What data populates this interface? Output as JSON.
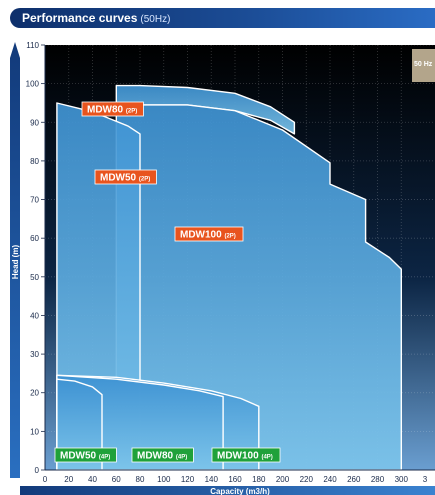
{
  "header": {
    "title": "Performance curves",
    "subtitle": "(50Hz)"
  },
  "chart_data": {
    "type": "area",
    "xlabel": "Capacity (m3/h)",
    "ylabel": "Head (m)",
    "xlim": [
      0,
      320
    ],
    "ylim": [
      0,
      110
    ],
    "x_ticks": [
      "0",
      "20",
      "40",
      "60",
      "80",
      "100",
      "120",
      "140",
      "160",
      "180",
      "200",
      "220",
      "240",
      "260",
      "280",
      "300",
      "3"
    ],
    "y_ticks": [
      "0",
      "10",
      "20",
      "30",
      "40",
      "50",
      "60",
      "70",
      "80",
      "90",
      "100",
      "110"
    ],
    "frequency_tag": "50 Hz",
    "colors": {
      "two_pole_label": "#e8541e",
      "four_pole_label": "#1fa13a",
      "area_fill": "#4aa8de",
      "background_top": "#000000",
      "background_bottom": "#5b8fc4"
    },
    "series": [
      {
        "name": "MDW80",
        "poles": "(2P)",
        "label_style": "orange",
        "x": [
          60,
          60,
          80,
          120,
          160,
          190,
          210,
          210
        ],
        "upper": [
          99.5,
          99.5,
          99.5,
          99,
          97.5,
          94,
          90,
          87
        ],
        "lower": [
          99.5,
          93.5,
          94.5,
          94.5,
          93,
          90.5,
          87,
          87
        ]
      },
      {
        "name": "MDW100",
        "poles": "(2P)",
        "label_style": "orange",
        "x": [
          60,
          60,
          80,
          120,
          160,
          200,
          240,
          240,
          270,
          270,
          290,
          300,
          300
        ],
        "upper": [
          93.5,
          93.5,
          94.5,
          94.5,
          93,
          88,
          79.5,
          74,
          70,
          59,
          55,
          52,
          0
        ],
        "lower": [
          0,
          0,
          0,
          0,
          0,
          0,
          0,
          0,
          0,
          0,
          0,
          0,
          0
        ]
      },
      {
        "name": "MDW50",
        "poles": "(2P)",
        "label_style": "orange",
        "x": [
          10,
          10,
          30,
          50,
          70,
          80,
          80
        ],
        "upper": [
          95,
          95,
          93.5,
          91.5,
          89,
          87,
          0
        ],
        "lower": [
          0,
          0,
          0,
          0,
          0,
          0,
          0
        ]
      },
      {
        "name": "MDW100",
        "poles": "(4P)",
        "label_style": "green",
        "x": [
          10,
          10,
          60,
          100,
          140,
          165,
          180,
          180
        ],
        "upper": [
          24.5,
          24.5,
          24,
          22.5,
          20.5,
          18.5,
          16.5,
          0
        ],
        "lower": [
          0,
          0,
          0,
          0,
          0,
          0,
          0,
          0
        ]
      },
      {
        "name": "MDW80",
        "poles": "(4P)",
        "label_style": "green",
        "x": [
          10,
          10,
          60,
          100,
          130,
          150,
          150
        ],
        "upper": [
          24.5,
          24.5,
          23.5,
          22,
          20.5,
          19,
          0
        ],
        "lower": [
          0,
          0,
          0,
          0,
          0,
          0,
          0
        ]
      },
      {
        "name": "MDW50",
        "poles": "(4P)",
        "label_style": "green",
        "x": [
          10,
          10,
          25,
          40,
          48,
          48
        ],
        "upper": [
          23.5,
          23.5,
          23,
          21.5,
          19.5,
          0
        ],
        "lower": [
          0,
          0,
          0,
          0,
          0,
          0
        ]
      }
    ]
  }
}
